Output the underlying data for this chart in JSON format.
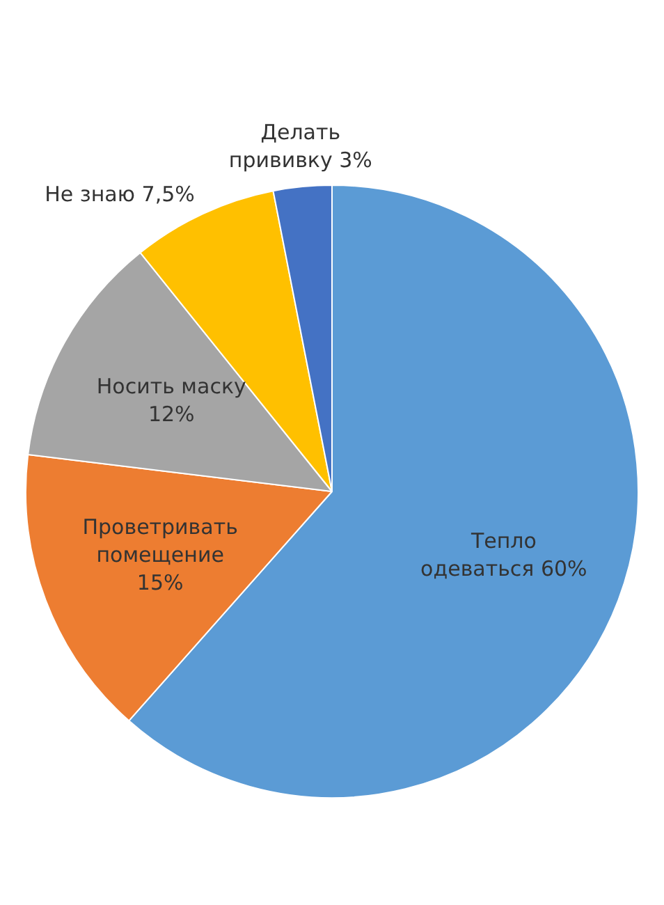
{
  "chart_data": {
    "type": "pie",
    "categories": [
      "Тепло одеваться",
      "Проветривать помещение",
      "Носить маску",
      "Не знаю",
      "Делать прививку"
    ],
    "values": [
      60,
      15,
      12,
      7.5,
      3
    ],
    "value_labels": [
      "60%",
      "15%",
      "12%",
      "7,5%",
      "3%"
    ],
    "colors": [
      "#5b9bd5",
      "#ed7d31",
      "#a5a5a5",
      "#ffc000",
      "#4472c4"
    ]
  }
}
